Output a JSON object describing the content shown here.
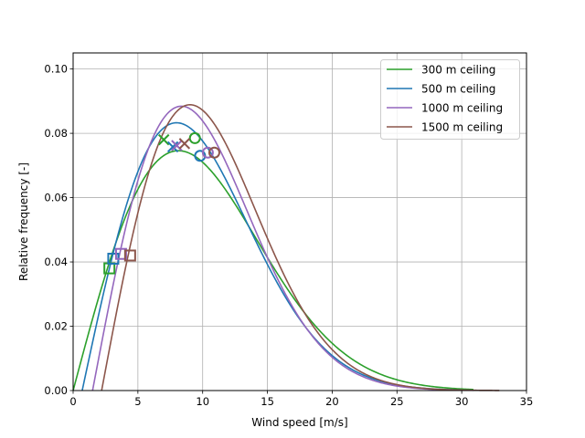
{
  "chart_data": {
    "type": "line",
    "xlabel": "Wind speed [m/s]",
    "ylabel": "Relative frequency [-]",
    "xlim": [
      0,
      35
    ],
    "ylim": [
      0,
      0.105
    ],
    "xticks": [
      0,
      5,
      10,
      15,
      20,
      25,
      30,
      35
    ],
    "yticks": [
      0.0,
      0.02,
      0.04,
      0.06,
      0.08,
      0.1
    ],
    "xtick_labels": [
      "0",
      "5",
      "10",
      "15",
      "20",
      "25",
      "30",
      "35"
    ],
    "ytick_labels": [
      "0.00",
      "0.02",
      "0.04",
      "0.06",
      "0.08",
      "0.10"
    ],
    "grid": true,
    "legend_position": "top-right",
    "series": [
      {
        "name": "300 m ceiling",
        "color": "#2ca02c",
        "offset": 0.0,
        "k": 2.0,
        "scale": 11.5,
        "curve_end": 31,
        "markers": [
          {
            "shape": "square",
            "x": 2.8,
            "y": 0.038
          },
          {
            "shape": "x",
            "x": 7.0,
            "y": 0.078
          },
          {
            "shape": "circle",
            "x": 9.4,
            "y": 0.0785
          }
        ]
      },
      {
        "name": "500 m ceiling",
        "color": "#1f77b4",
        "offset": 0.7,
        "k": 2.0,
        "scale": 10.3,
        "curve_end": 30,
        "markers": [
          {
            "shape": "square",
            "x": 3.1,
            "y": 0.041
          },
          {
            "shape": "x",
            "x": 7.7,
            "y": 0.0758
          },
          {
            "shape": "circle",
            "x": 9.8,
            "y": 0.073
          }
        ]
      },
      {
        "name": "1000 m ceiling",
        "color": "#9467bd",
        "offset": 1.5,
        "k": 2.0,
        "scale": 9.7,
        "curve_end": 31,
        "markers": [
          {
            "shape": "square",
            "x": 3.7,
            "y": 0.0425
          },
          {
            "shape": "x",
            "x": 8.0,
            "y": 0.0762
          },
          {
            "shape": "circle",
            "x": 10.4,
            "y": 0.074
          }
        ]
      },
      {
        "name": "1500 m ceiling",
        "color": "#8c564b",
        "offset": 2.2,
        "k": 2.0,
        "scale": 9.65,
        "curve_end": 33,
        "markers": [
          {
            "shape": "square",
            "x": 4.4,
            "y": 0.042
          },
          {
            "shape": "x",
            "x": 8.6,
            "y": 0.0768
          },
          {
            "shape": "circle",
            "x": 10.9,
            "y": 0.074
          }
        ]
      }
    ]
  }
}
